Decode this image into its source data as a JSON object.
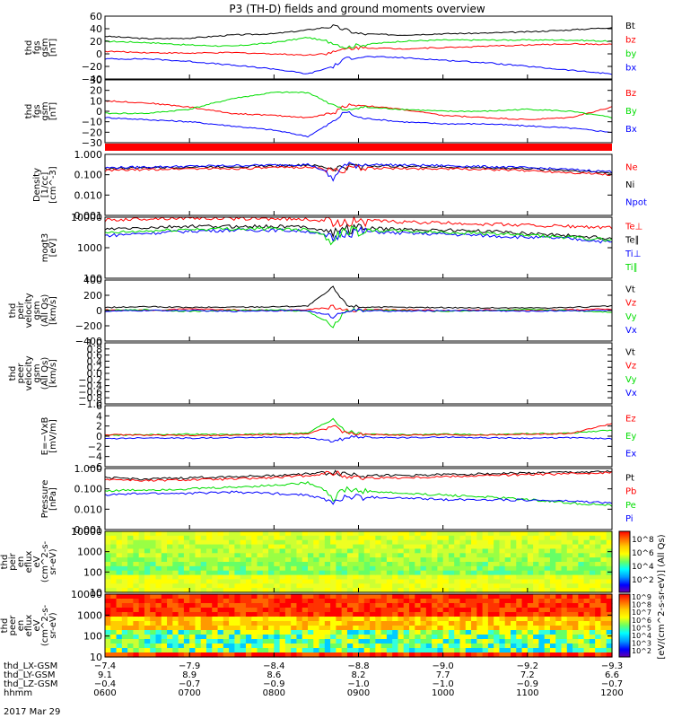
{
  "title": "P3 (TH-D) fields and ground moments overview",
  "date_label": "2017 Mar 29",
  "colors": {
    "black": "#000000",
    "red": "#ff0000",
    "green": "#00dd00",
    "blue": "#0000ff"
  },
  "chart_data": [
    {
      "type": "line",
      "id": "fgs-gsm",
      "ylabel": [
        "thd",
        "fgs",
        "gsm",
        "[nT]"
      ],
      "ylim": [
        -40,
        60
      ],
      "yticks": [
        "60",
        "40",
        "20",
        "0",
        "−20",
        "−40"
      ],
      "ytick_values": [
        60,
        40,
        20,
        0,
        -20,
        -40
      ],
      "legend": [
        {
          "name": "Bt",
          "color": "#000000"
        },
        {
          "name": "bz",
          "color": "#ff0000"
        },
        {
          "name": "by",
          "color": "#00dd00"
        },
        {
          "name": "bx",
          "color": "#0000ff"
        }
      ],
      "x_hours": [
        6.0,
        6.5,
        7.0,
        7.5,
        8.0,
        8.4,
        8.7,
        8.85,
        9.0,
        9.5,
        10.0,
        10.5,
        11.0,
        11.5,
        12.0
      ],
      "series": [
        {
          "color": "#000000",
          "values": [
            28,
            24,
            25,
            30,
            32,
            38,
            44,
            38,
            32,
            30,
            32,
            33,
            35,
            38,
            42
          ]
        },
        {
          "color": "#ff0000",
          "values": [
            4,
            2,
            1,
            2,
            0,
            -2,
            2,
            8,
            10,
            8,
            10,
            12,
            14,
            16,
            15
          ]
        },
        {
          "color": "#00dd00",
          "values": [
            20,
            18,
            14,
            12,
            18,
            26,
            18,
            10,
            14,
            20,
            22,
            22,
            22,
            22,
            20
          ]
        },
        {
          "color": "#0000ff",
          "values": [
            -8,
            -8,
            -12,
            -18,
            -24,
            -32,
            -20,
            -8,
            -4,
            -6,
            -10,
            -14,
            -20,
            -26,
            -32
          ]
        }
      ]
    },
    {
      "type": "line",
      "id": "fgs-gse",
      "ylabel": [
        "thd",
        "fgs",
        "gsm",
        "[nT]"
      ],
      "ylim": [
        -30,
        30
      ],
      "yticks": [
        "30",
        "20",
        "10",
        "0",
        "−10",
        "−20",
        "−30"
      ],
      "ytick_values": [
        30,
        20,
        10,
        0,
        -10,
        -20,
        -30
      ],
      "legend": [
        {
          "name": "Bz",
          "color": "#ff0000"
        },
        {
          "name": "By",
          "color": "#00dd00"
        },
        {
          "name": "Bx",
          "color": "#0000ff"
        }
      ],
      "x_hours": [
        6.0,
        6.5,
        7.0,
        7.5,
        8.0,
        8.4,
        8.7,
        8.85,
        9.0,
        9.5,
        10.0,
        10.5,
        11.0,
        11.5,
        12.0
      ],
      "series": [
        {
          "color": "#ff0000",
          "values": [
            10,
            8,
            4,
            -2,
            -4,
            -6,
            -2,
            6,
            6,
            2,
            -4,
            -6,
            -8,
            -6,
            4
          ]
        },
        {
          "color": "#00dd00",
          "values": [
            -2,
            -2,
            2,
            12,
            18,
            18,
            6,
            0,
            4,
            2,
            0,
            0,
            2,
            0,
            -6
          ]
        },
        {
          "color": "#0000ff",
          "values": [
            -6,
            -8,
            -10,
            -14,
            -18,
            -24,
            -10,
            0,
            -6,
            -10,
            -12,
            -12,
            -14,
            -16,
            -20
          ]
        }
      ]
    },
    {
      "type": "line",
      "id": "density",
      "ylabel": [
        "Density",
        "[1/cc]",
        "[cm^-3]"
      ],
      "scale": "log",
      "ylim": [
        0.001,
        1.0
      ],
      "yticks": [
        "1.000",
        "0.100",
        "0.010",
        "0.001"
      ],
      "ytick_values": [
        1.0,
        0.1,
        0.01,
        0.001
      ],
      "legend": [
        {
          "name": "Ne",
          "color": "#ff0000"
        },
        {
          "name": "Ni",
          "color": "#000000"
        },
        {
          "name": "Npot",
          "color": "#0000ff"
        }
      ],
      "x_hours": [
        6.0,
        6.5,
        7.0,
        7.5,
        8.0,
        8.4,
        8.7,
        8.85,
        9.0,
        9.5,
        10.0,
        10.5,
        11.0,
        11.5,
        12.0
      ],
      "series": [
        {
          "color": "#000000",
          "values": [
            0.2,
            0.22,
            0.24,
            0.25,
            0.27,
            0.3,
            0.2,
            0.25,
            0.28,
            0.26,
            0.24,
            0.22,
            0.2,
            0.16,
            0.12
          ]
        },
        {
          "color": "#ff0000",
          "values": [
            0.16,
            0.18,
            0.2,
            0.2,
            0.22,
            0.24,
            0.16,
            0.2,
            0.22,
            0.2,
            0.2,
            0.18,
            0.16,
            0.13,
            0.1
          ]
        },
        {
          "color": "#0000ff",
          "values": [
            0.22,
            0.24,
            0.26,
            0.28,
            0.3,
            0.32,
            0.05,
            0.3,
            0.32,
            0.3,
            0.28,
            0.25,
            0.22,
            0.18,
            0.14
          ]
        }
      ]
    },
    {
      "type": "line",
      "id": "temperature",
      "ylabel": [
        "mogt3",
        "[eV]"
      ],
      "scale": "log",
      "ylim": [
        100,
        10000
      ],
      "yticks": [
        "10000",
        "1000",
        "100"
      ],
      "ytick_values": [
        10000,
        1000,
        100
      ],
      "legend": [
        {
          "name": "Te⊥",
          "color": "#ff0000"
        },
        {
          "name": "Te∥",
          "color": "#000000"
        },
        {
          "name": "Ti⊥",
          "color": "#0000ff"
        },
        {
          "name": "Ti∥",
          "color": "#00dd00"
        }
      ],
      "x_hours": [
        6.0,
        6.5,
        7.0,
        7.5,
        8.0,
        8.4,
        8.7,
        8.85,
        9.0,
        9.5,
        10.0,
        10.5,
        11.0,
        11.5,
        12.0
      ],
      "series": [
        {
          "color": "#ff0000",
          "values": [
            8000,
            9000,
            9500,
            9000,
            9000,
            8500,
            7000,
            8000,
            8000,
            7000,
            6500,
            6000,
            5500,
            5000,
            4500
          ]
        },
        {
          "color": "#000000",
          "values": [
            4000,
            4500,
            5000,
            5000,
            5000,
            4800,
            3000,
            4500,
            4500,
            4000,
            3800,
            3500,
            3000,
            2500,
            2000
          ]
        },
        {
          "color": "#0000ff",
          "values": [
            2500,
            3000,
            3500,
            3800,
            3800,
            3500,
            2000,
            3500,
            3500,
            3000,
            2800,
            2500,
            2200,
            2000,
            1500
          ]
        },
        {
          "color": "#00dd00",
          "values": [
            3000,
            3500,
            4000,
            4200,
            4200,
            4000,
            1800,
            3800,
            3800,
            3500,
            3200,
            3000,
            2500,
            2200,
            1800
          ]
        }
      ]
    },
    {
      "type": "line",
      "id": "peir-velocity",
      "ylabel": [
        "thd",
        "peir",
        "velocity",
        "gsm",
        "(All Qs)",
        "[km/s]"
      ],
      "ylim": [
        -400,
        400
      ],
      "yticks": [
        "400",
        "200",
        "0",
        "−200",
        "−400"
      ],
      "ytick_values": [
        400,
        200,
        0,
        -200,
        -400
      ],
      "legend": [
        {
          "name": "Vt",
          "color": "#000000"
        },
        {
          "name": "Vz",
          "color": "#ff0000"
        },
        {
          "name": "Vy",
          "color": "#00dd00"
        },
        {
          "name": "Vx",
          "color": "#0000ff"
        }
      ],
      "x_hours": [
        6.0,
        6.5,
        7.0,
        7.5,
        8.0,
        8.4,
        8.7,
        8.85,
        9.0,
        9.5,
        10.0,
        10.5,
        11.0,
        11.5,
        12.0
      ],
      "series": [
        {
          "color": "#000000",
          "values": [
            40,
            50,
            40,
            45,
            50,
            60,
            300,
            80,
            50,
            40,
            40,
            35,
            35,
            40,
            60
          ]
        },
        {
          "color": "#ff0000",
          "values": [
            10,
            0,
            20,
            10,
            0,
            10,
            50,
            0,
            10,
            10,
            0,
            10,
            0,
            10,
            20
          ]
        },
        {
          "color": "#00dd00",
          "values": [
            0,
            10,
            -10,
            0,
            10,
            -10,
            -200,
            0,
            10,
            0,
            -10,
            0,
            10,
            0,
            -20
          ]
        },
        {
          "color": "#0000ff",
          "values": [
            -10,
            0,
            0,
            -10,
            0,
            0,
            -80,
            0,
            0,
            -10,
            0,
            0,
            -10,
            0,
            0
          ]
        }
      ]
    },
    {
      "type": "line",
      "id": "peer-velocity",
      "ylabel": [
        "thd",
        "peer",
        "velocity",
        "gsm",
        "(All Qs)",
        "[km/s]"
      ],
      "ylim": [
        -1.0,
        1.0
      ],
      "yticks": [
        "1.0",
        "0.8",
        "0.6",
        "0.4",
        "0.2",
        "0.0",
        "−0.2",
        "−0.4",
        "−0.6",
        "−0.8",
        "−1.0"
      ],
      "ytick_values": [
        1.0,
        0.8,
        0.6,
        0.4,
        0.2,
        0.0,
        -0.2,
        -0.4,
        -0.6,
        -0.8,
        -1.0
      ],
      "legend": [
        {
          "name": "Vt",
          "color": "#000000"
        },
        {
          "name": "Vz",
          "color": "#ff0000"
        },
        {
          "name": "Vy",
          "color": "#00dd00"
        },
        {
          "name": "Vx",
          "color": "#0000ff"
        }
      ],
      "x_hours": [],
      "series": []
    },
    {
      "type": "line",
      "id": "efield",
      "ylabel": [
        "E=−VxB",
        "[mV/m]"
      ],
      "ylim": [
        -6,
        6
      ],
      "yticks": [
        "6",
        "4",
        "2",
        "0",
        "−2",
        "−4",
        "−6"
      ],
      "ytick_values": [
        6,
        4,
        2,
        0,
        -2,
        -4,
        -6
      ],
      "legend": [
        {
          "name": "Ez",
          "color": "#ff0000"
        },
        {
          "name": "Ey",
          "color": "#00dd00"
        },
        {
          "name": "Ex",
          "color": "#0000ff"
        }
      ],
      "x_hours": [
        6.0,
        6.5,
        7.0,
        7.5,
        8.0,
        8.4,
        8.7,
        8.85,
        9.0,
        9.5,
        10.0,
        10.5,
        11.0,
        11.5,
        12.0
      ],
      "series": [
        {
          "color": "#0000ff",
          "values": [
            -0.5,
            -0.3,
            -0.4,
            -0.3,
            -0.2,
            -0.3,
            -1.0,
            -0.3,
            -0.2,
            -0.3,
            -0.2,
            -0.3,
            -0.4,
            -0.3,
            -0.5
          ]
        },
        {
          "color": "#00dd00",
          "values": [
            0.2,
            0.3,
            0.4,
            0.3,
            0.5,
            0.6,
            3.5,
            1.0,
            0.5,
            0.3,
            0.4,
            0.3,
            0.5,
            0.6,
            1.2
          ]
        },
        {
          "color": "#ff0000",
          "values": [
            0.3,
            0.2,
            0.1,
            0.2,
            0.3,
            0.5,
            2.0,
            0.6,
            0.4,
            0.2,
            0.3,
            0.2,
            0.4,
            0.5,
            2.5
          ]
        }
      ]
    },
    {
      "type": "line",
      "id": "pressure",
      "ylabel": [
        "Pressure",
        "[nPa]"
      ],
      "scale": "log",
      "ylim": [
        0.001,
        1.0
      ],
      "yticks": [
        "1.000",
        "0.100",
        "0.010",
        "0.001"
      ],
      "ytick_values": [
        1.0,
        0.1,
        0.01,
        0.001
      ],
      "legend": [
        {
          "name": "Pt",
          "color": "#000000"
        },
        {
          "name": "Pb",
          "color": "#ff0000"
        },
        {
          "name": "Pe",
          "color": "#00dd00"
        },
        {
          "name": "Pi",
          "color": "#0000ff"
        }
      ],
      "x_hours": [
        6.0,
        6.5,
        7.0,
        7.5,
        8.0,
        8.4,
        8.7,
        8.85,
        9.0,
        9.5,
        10.0,
        10.5,
        11.0,
        11.5,
        12.0
      ],
      "series": [
        {
          "color": "#000000",
          "values": [
            0.35,
            0.3,
            0.35,
            0.4,
            0.45,
            0.55,
            0.7,
            0.55,
            0.5,
            0.45,
            0.5,
            0.55,
            0.6,
            0.65,
            0.7
          ]
        },
        {
          "color": "#ff0000",
          "values": [
            0.3,
            0.25,
            0.28,
            0.3,
            0.35,
            0.45,
            0.6,
            0.45,
            0.35,
            0.35,
            0.4,
            0.45,
            0.5,
            0.55,
            0.65
          ]
        },
        {
          "color": "#00dd00",
          "values": [
            0.08,
            0.09,
            0.1,
            0.12,
            0.15,
            0.2,
            0.03,
            0.1,
            0.08,
            0.06,
            0.05,
            0.04,
            0.03,
            0.02,
            0.015
          ]
        },
        {
          "color": "#0000ff",
          "values": [
            0.05,
            0.06,
            0.06,
            0.07,
            0.06,
            0.05,
            0.02,
            0.04,
            0.04,
            0.035,
            0.03,
            0.03,
            0.028,
            0.025,
            0.02
          ]
        }
      ]
    },
    {
      "type": "heatmap",
      "id": "peir-eflux",
      "ylabel": [
        "thd",
        "peir",
        "en",
        "eflux",
        "eV",
        "(cm^2-s-",
        "sr-eV)"
      ],
      "scale": "log",
      "ylim": [
        10,
        10000
      ],
      "yticks": [
        "10000",
        "1000",
        "100",
        "10"
      ],
      "ytick_values": [
        10000,
        1000,
        100,
        10
      ],
      "dominant": "yellow-green"
    },
    {
      "type": "heatmap",
      "id": "peer-eflux",
      "ylabel": [
        "thd",
        "peer",
        "en",
        "eflux",
        "eV",
        "(cm^2-s-",
        "sr-eV)"
      ],
      "scale": "log",
      "ylim": [
        10,
        10000
      ],
      "yticks": [
        "10000",
        "1000",
        "100",
        "10"
      ],
      "ytick_values": [
        10000,
        1000,
        100,
        10
      ],
      "dominant": "red-orange"
    }
  ],
  "colorbar": {
    "label": "[eV/(cm^2-s-sr-eV)] (All Qs)",
    "top_ticks": [
      "10^8",
      "10^6",
      "10^4",
      "10^2"
    ],
    "bottom_ticks": [
      "10^9",
      "10^8",
      "10^7",
      "10^6",
      "10^5",
      "10^4",
      "10^3",
      "10^2"
    ]
  },
  "x_axis": {
    "row_labels": [
      "thd_LX-GSM",
      "thd_LY-GSM",
      "thd_LZ-GSM",
      "hhmm"
    ],
    "ticks": [
      {
        "hour": 6,
        "lx": "−7.4",
        "ly": "9.1",
        "lz": "−0.4",
        "hhmm": "0600"
      },
      {
        "hour": 7,
        "lx": "−7.9",
        "ly": "8.9",
        "lz": "−0.7",
        "hhmm": "0700"
      },
      {
        "hour": 8,
        "lx": "−8.4",
        "ly": "8.6",
        "lz": "−0.9",
        "hhmm": "0800"
      },
      {
        "hour": 9,
        "lx": "−8.8",
        "ly": "8.2",
        "lz": "−1.0",
        "hhmm": "0900"
      },
      {
        "hour": 10,
        "lx": "−9.0",
        "ly": "7.7",
        "lz": "−1.0",
        "hhmm": "1000"
      },
      {
        "hour": 11,
        "lx": "−9.2",
        "ly": "7.2",
        "lz": "−0.9",
        "hhmm": "1100"
      },
      {
        "hour": 12,
        "lx": "−9.3",
        "ly": "6.6",
        "lz": "−0.7",
        "hhmm": "1200"
      }
    ],
    "range_hours": [
      6,
      12
    ]
  }
}
